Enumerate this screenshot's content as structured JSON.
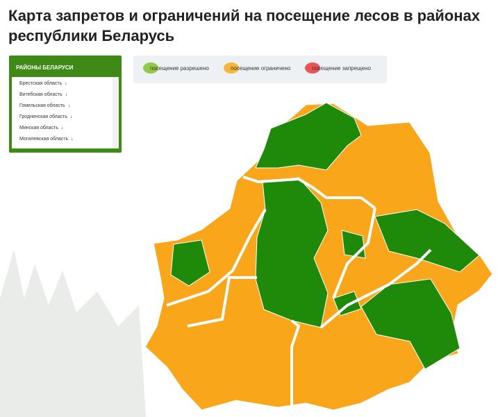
{
  "header": {
    "title": "Карта запретов и ограничений на посещение лесов в районах республики Беларусь"
  },
  "sidebar": {
    "title": "РАЙОНЫ БЕЛАРУСИ",
    "regions": [
      "Брестская область",
      "Витебская область",
      "Гомельская область",
      "Гродненская область",
      "Минская область",
      "Могилевская область"
    ]
  },
  "legend": {
    "items": [
      {
        "label": "посещение разрешено",
        "color": "#8cc63f"
      },
      {
        "label": "посещение ограничено",
        "color": "#f9b233"
      },
      {
        "label": "посещение запрещено",
        "color": "#e84b4b"
      }
    ]
  }
}
